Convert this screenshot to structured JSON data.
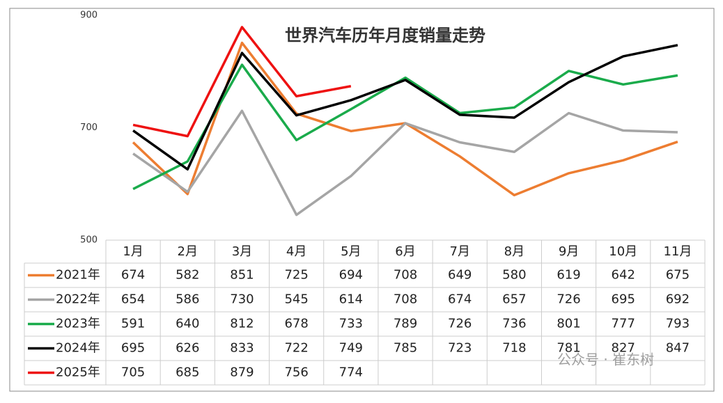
{
  "chart_data": {
    "type": "line",
    "title": "世界汽车历年月度销量走势",
    "categories": [
      "1月",
      "2月",
      "3月",
      "4月",
      "5月",
      "6月",
      "7月",
      "8月",
      "9月",
      "10月",
      "11月"
    ],
    "series": [
      {
        "name": "2021年",
        "color": "#ed7d31",
        "values": [
          674,
          582,
          851,
          725,
          694,
          708,
          649,
          580,
          619,
          642,
          675
        ]
      },
      {
        "name": "2022年",
        "color": "#a5a5a5",
        "values": [
          654,
          586,
          730,
          545,
          614,
          708,
          674,
          657,
          726,
          695,
          692
        ]
      },
      {
        "name": "2023年",
        "color": "#1aab4b",
        "values": [
          591,
          640,
          812,
          678,
          733,
          789,
          726,
          736,
          801,
          777,
          793
        ]
      },
      {
        "name": "2024年",
        "color": "#000000",
        "values": [
          695,
          626,
          833,
          722,
          749,
          785,
          723,
          718,
          781,
          827,
          847
        ]
      },
      {
        "name": "2025年",
        "color": "#ee1111",
        "values": [
          705,
          685,
          879,
          756,
          774,
          null,
          null,
          null,
          null,
          null,
          null
        ]
      }
    ],
    "ylim": [
      500,
      900
    ],
    "yticks": [
      500,
      700,
      900
    ],
    "grid": false,
    "data_table": true,
    "watermark": "公众号 · 崔东树"
  }
}
